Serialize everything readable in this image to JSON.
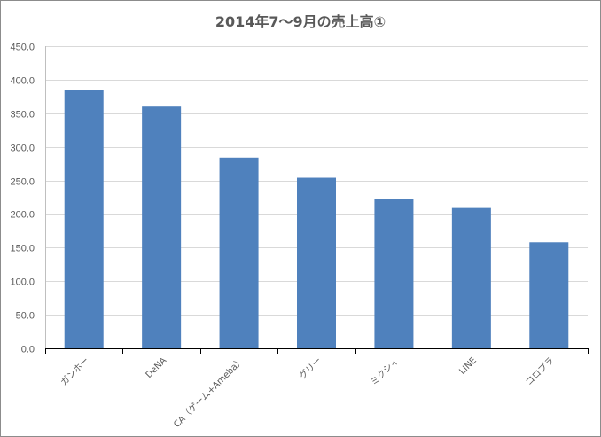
{
  "chart_data": {
    "type": "bar",
    "title": "2014年7～9月の売上高①",
    "categories": [
      "ガンホー",
      "DeNA",
      "CA（ゲーム+Ameba）",
      "グリー",
      "ミクシィ",
      "LINE",
      "コロプラ"
    ],
    "values": [
      385,
      360,
      284,
      254,
      222,
      209,
      158
    ],
    "xlabel": "",
    "ylabel": "",
    "ylim": [
      0,
      450
    ],
    "yticks": [
      "0.0",
      "50.0",
      "100.0",
      "150.0",
      "200.0",
      "250.0",
      "300.0",
      "350.0",
      "400.0",
      "450.0"
    ],
    "grid": true,
    "legend": "none",
    "bar_color": "#4f81bd",
    "gridline_color": "#d9d9d9",
    "axis_color": "#000000"
  }
}
